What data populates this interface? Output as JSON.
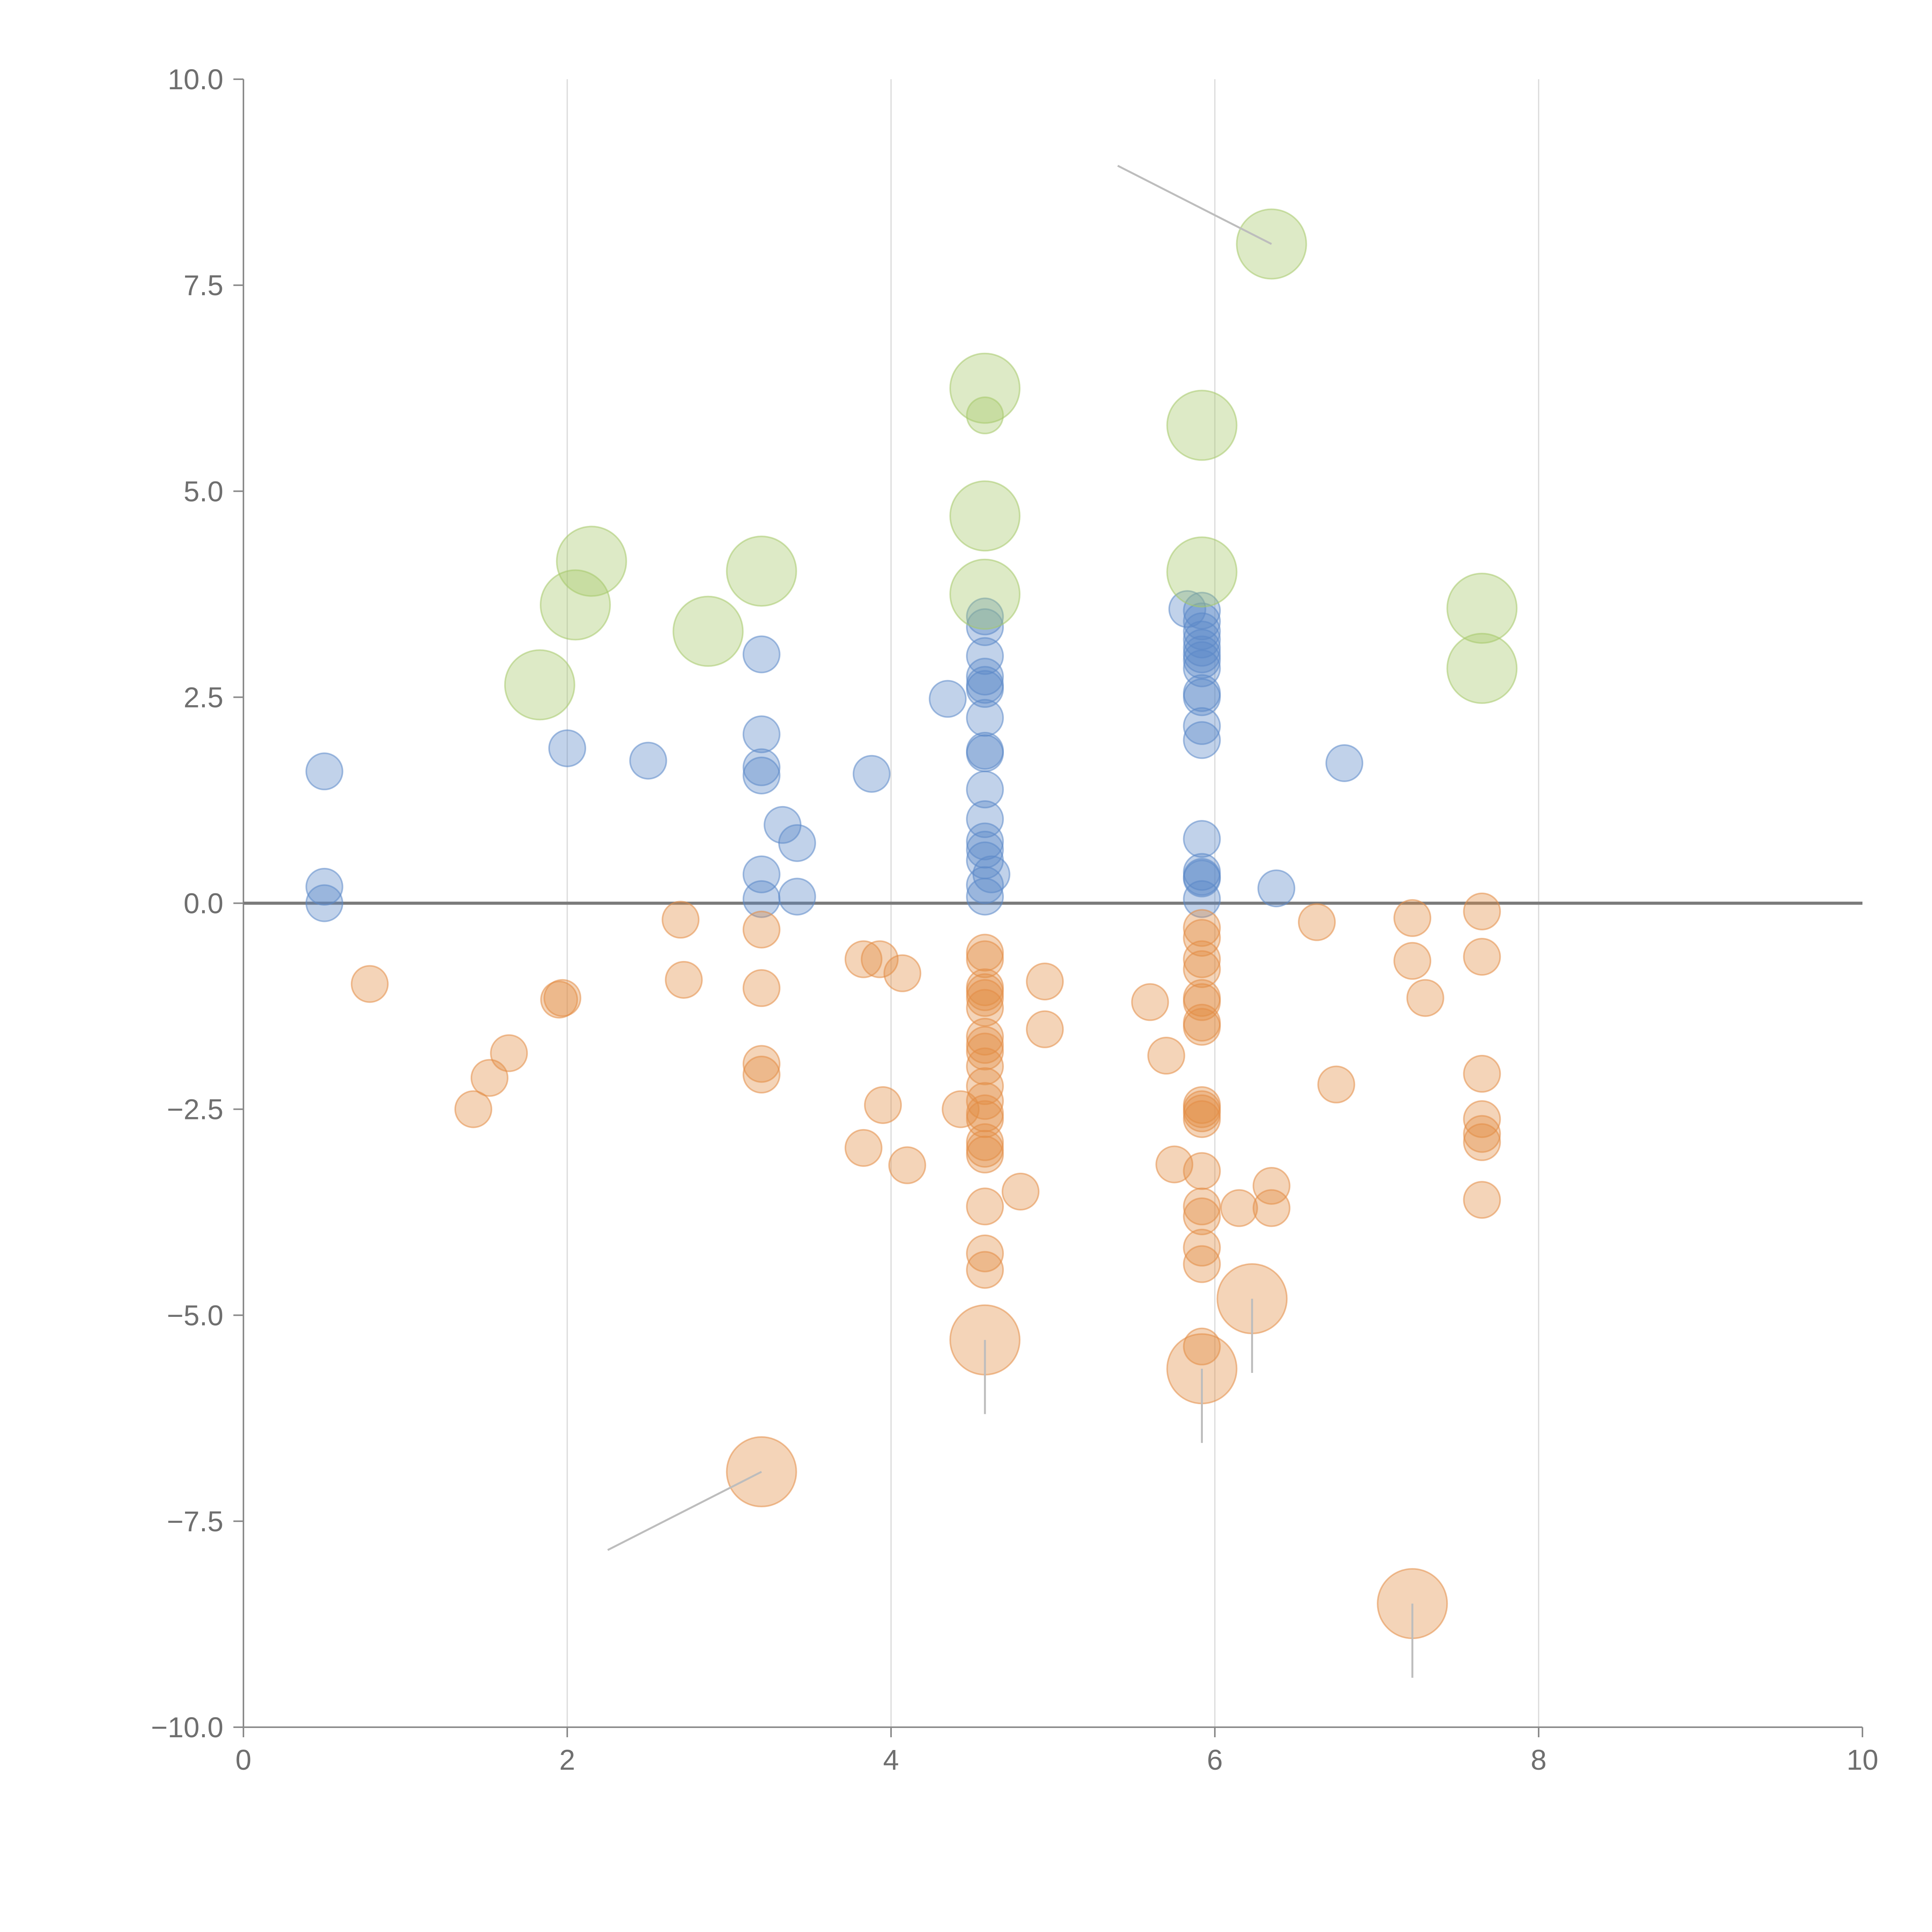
{
  "chart_data": {
    "type": "scatter",
    "title": "",
    "xlabel": "",
    "ylabel": "",
    "xlim": [
      0,
      10
    ],
    "ylim": [
      -10,
      10
    ],
    "x_ticks": [
      "0",
      "2",
      "4",
      "6",
      "8",
      "10"
    ],
    "y_ticks": [
      "10.0",
      "7.5",
      "5.0",
      "2.5",
      "0.0",
      "−2.5",
      "−5.0",
      "−7.5",
      "−10.0"
    ],
    "x_tick_values": [
      0,
      2,
      4,
      6,
      8,
      10
    ],
    "y_tick_values": [
      10,
      7.5,
      5,
      2.5,
      0,
      -2.5,
      -5,
      -7.5,
      -10
    ],
    "vertical_grid_at": [
      2,
      4,
      6,
      8
    ],
    "reference_line_y": 0,
    "colors": {
      "positive": "#5b88c9",
      "negative": "#e38d45",
      "highlight": "#a5c86a",
      "leader": "#bdbdbd"
    },
    "series": [
      {
        "name": "positive",
        "color": "#5b88c9",
        "points": [
          [
            0.5,
            1.6
          ],
          [
            0.5,
            0.2
          ],
          [
            0.5,
            0.0
          ],
          [
            2.0,
            1.88
          ],
          [
            2.5,
            1.73
          ],
          [
            3.2,
            3.02
          ],
          [
            3.2,
            2.05
          ],
          [
            3.2,
            1.65
          ],
          [
            3.2,
            1.55
          ],
          [
            3.2,
            0.35
          ],
          [
            3.2,
            0.05
          ],
          [
            3.33,
            0.95
          ],
          [
            3.42,
            0.73
          ],
          [
            3.42,
            0.08
          ],
          [
            3.88,
            1.57
          ],
          [
            4.35,
            2.48
          ],
          [
            4.58,
            3.48
          ],
          [
            4.58,
            3.35
          ],
          [
            4.58,
            3.0
          ],
          [
            4.58,
            2.75
          ],
          [
            4.58,
            2.65
          ],
          [
            4.58,
            2.6
          ],
          [
            4.58,
            2.25
          ],
          [
            4.58,
            1.85
          ],
          [
            4.58,
            1.82
          ],
          [
            4.58,
            1.38
          ],
          [
            4.58,
            1.02
          ],
          [
            4.58,
            0.75
          ],
          [
            4.58,
            0.65
          ],
          [
            4.58,
            0.52
          ],
          [
            4.58,
            0.22
          ],
          [
            4.58,
            0.08
          ],
          [
            4.62,
            0.35
          ],
          [
            5.83,
            3.57
          ],
          [
            5.92,
            3.55
          ],
          [
            5.92,
            3.42
          ],
          [
            5.92,
            3.3
          ],
          [
            5.92,
            3.2
          ],
          [
            5.92,
            3.1
          ],
          [
            5.92,
            3.02
          ],
          [
            5.92,
            2.95
          ],
          [
            5.92,
            2.85
          ],
          [
            5.92,
            2.55
          ],
          [
            5.92,
            2.5
          ],
          [
            5.92,
            2.15
          ],
          [
            5.92,
            1.98
          ],
          [
            5.92,
            0.78
          ],
          [
            5.92,
            0.38
          ],
          [
            5.92,
            0.32
          ],
          [
            5.92,
            0.3
          ],
          [
            5.92,
            0.05
          ],
          [
            6.38,
            0.18
          ],
          [
            6.8,
            1.7
          ]
        ]
      },
      {
        "name": "negative",
        "color": "#e38d45",
        "points": [
          [
            0.78,
            -0.98
          ],
          [
            1.42,
            -2.5
          ],
          [
            1.52,
            -2.12
          ],
          [
            1.64,
            -1.82
          ],
          [
            1.95,
            -1.17
          ],
          [
            1.97,
            -1.15
          ],
          [
            2.7,
            -0.2
          ],
          [
            2.72,
            -0.93
          ],
          [
            3.2,
            -0.32
          ],
          [
            3.2,
            -1.03
          ],
          [
            3.2,
            -1.95
          ],
          [
            3.2,
            -2.08
          ],
          [
            3.83,
            -0.68
          ],
          [
            3.83,
            -2.97
          ],
          [
            3.93,
            -0.68
          ],
          [
            3.95,
            -2.45
          ],
          [
            4.07,
            -0.85
          ],
          [
            4.1,
            -3.18
          ],
          [
            4.43,
            -2.5
          ],
          [
            4.58,
            -0.6
          ],
          [
            4.58,
            -0.68
          ],
          [
            4.58,
            -1.02
          ],
          [
            4.58,
            -1.08
          ],
          [
            4.58,
            -1.15
          ],
          [
            4.58,
            -1.27
          ],
          [
            4.58,
            -1.62
          ],
          [
            4.58,
            -1.72
          ],
          [
            4.58,
            -1.8
          ],
          [
            4.58,
            -1.98
          ],
          [
            4.58,
            -2.22
          ],
          [
            4.58,
            -2.4
          ],
          [
            4.58,
            -2.55
          ],
          [
            4.58,
            -2.62
          ],
          [
            4.58,
            -2.9
          ],
          [
            4.58,
            -2.98
          ],
          [
            4.58,
            -3.05
          ],
          [
            4.58,
            -3.68
          ],
          [
            4.58,
            -4.25
          ],
          [
            4.58,
            -4.45
          ],
          [
            4.8,
            -3.5
          ],
          [
            4.95,
            -0.95
          ],
          [
            4.95,
            -1.53
          ],
          [
            5.6,
            -1.2
          ],
          [
            5.7,
            -1.85
          ],
          [
            5.75,
            -3.17
          ],
          [
            5.92,
            -0.3
          ],
          [
            5.92,
            -0.42
          ],
          [
            5.92,
            -0.68
          ],
          [
            5.92,
            -0.8
          ],
          [
            5.92,
            -1.15
          ],
          [
            5.92,
            -1.2
          ],
          [
            5.92,
            -1.45
          ],
          [
            5.92,
            -1.5
          ],
          [
            5.92,
            -2.45
          ],
          [
            5.92,
            -2.5
          ],
          [
            5.92,
            -2.55
          ],
          [
            5.92,
            -2.62
          ],
          [
            5.92,
            -3.25
          ],
          [
            5.92,
            -3.68
          ],
          [
            5.92,
            -3.8
          ],
          [
            5.92,
            -4.18
          ],
          [
            5.92,
            -4.38
          ],
          [
            5.92,
            -5.38
          ],
          [
            6.15,
            -3.7
          ],
          [
            6.35,
            -3.43
          ],
          [
            6.35,
            -3.7
          ],
          [
            6.63,
            -0.23
          ],
          [
            6.75,
            -2.2
          ],
          [
            7.22,
            -0.18
          ],
          [
            7.22,
            -0.7
          ],
          [
            7.3,
            -1.15
          ],
          [
            7.65,
            -0.1
          ],
          [
            7.65,
            -0.65
          ],
          [
            7.65,
            -2.07
          ],
          [
            7.65,
            -2.62
          ],
          [
            7.65,
            -2.8
          ],
          [
            7.65,
            -2.9
          ],
          [
            7.65,
            -3.6
          ]
        ]
      },
      {
        "name": "highlight-positive",
        "color": "#a5c86a",
        "points": [
          [
            1.83,
            2.65
          ],
          [
            2.05,
            3.62
          ],
          [
            2.15,
            4.15
          ],
          [
            2.87,
            3.3
          ],
          [
            3.2,
            4.03
          ],
          [
            4.58,
            6.25
          ],
          [
            4.58,
            5.92
          ],
          [
            4.58,
            4.7
          ],
          [
            4.58,
            3.75
          ],
          [
            5.92,
            5.8
          ],
          [
            5.92,
            4.02
          ],
          [
            6.35,
            8.0
          ],
          [
            7.65,
            3.58
          ],
          [
            7.65,
            2.85
          ]
        ],
        "sizes": [
          "large",
          "large",
          "large",
          "large",
          "large",
          "large",
          "small",
          "large",
          "large",
          "large",
          "large",
          "large",
          "large",
          "large"
        ]
      },
      {
        "name": "highlight-negative",
        "color": "#e38d45",
        "points": [
          [
            3.2,
            -6.9
          ],
          [
            4.58,
            -5.3
          ],
          [
            5.92,
            -5.65
          ],
          [
            6.23,
            -4.8
          ],
          [
            7.22,
            -8.5
          ]
        ],
        "sizes": [
          "large",
          "large",
          "large",
          "large",
          "large"
        ]
      }
    ],
    "leader_lines": [
      {
        "from": [
          6.35,
          8.0
        ],
        "to": [
          5.4,
          8.95
        ]
      },
      {
        "from": [
          3.2,
          -6.9
        ],
        "to": [
          2.25,
          -7.85
        ]
      },
      {
        "from": [
          4.58,
          -5.3
        ],
        "to": [
          4.58,
          -6.2
        ]
      },
      {
        "from": [
          5.92,
          -5.65
        ],
        "to": [
          5.92,
          -6.55
        ]
      },
      {
        "from": [
          6.23,
          -4.8
        ],
        "to": [
          6.23,
          -5.7
        ]
      },
      {
        "from": [
          7.22,
          -8.5
        ],
        "to": [
          7.22,
          -9.4
        ]
      }
    ]
  }
}
